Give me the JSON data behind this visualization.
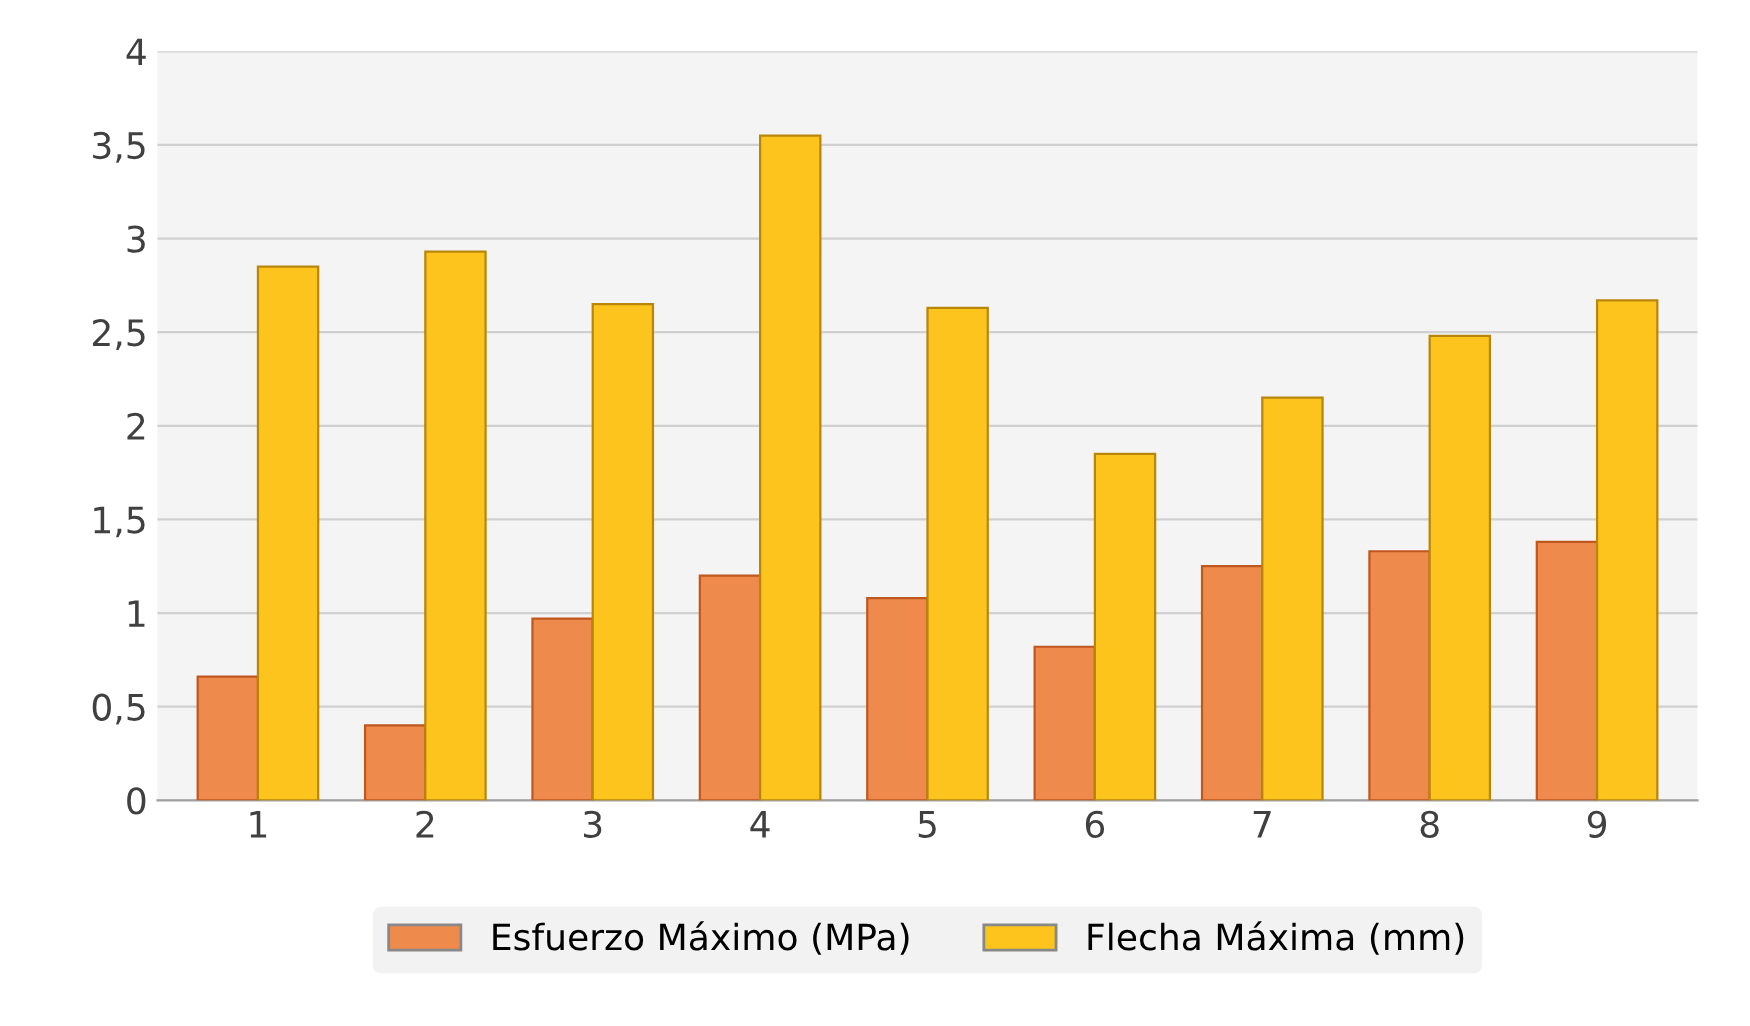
{
  "chart_data": {
    "type": "bar",
    "categories": [
      "1",
      "2",
      "3",
      "4",
      "5",
      "6",
      "7",
      "8",
      "9"
    ],
    "series": [
      {
        "name": "Esfuerzo Máximo (MPa)",
        "color": "#ee8a4c",
        "values": [
          0.66,
          0.4,
          0.97,
          1.2,
          1.08,
          0.82,
          1.25,
          1.33,
          1.38
        ]
      },
      {
        "name": "Flecha Máxima (mm)",
        "color": "#fcc41c",
        "values": [
          2.85,
          2.93,
          2.65,
          3.55,
          2.63,
          1.85,
          2.15,
          2.48,
          2.67
        ]
      }
    ],
    "ylim": [
      0,
      4
    ],
    "yticks": [
      0,
      {
        "value": 0.5,
        "label": "0,5"
      },
      1,
      {
        "value": 1.5,
        "label": "1,5"
      },
      2,
      {
        "value": 2.5,
        "label": "2,5"
      },
      3,
      {
        "value": 3.5,
        "label": "3,5"
      },
      4
    ],
    "grid": "y",
    "legend": "bottom"
  }
}
